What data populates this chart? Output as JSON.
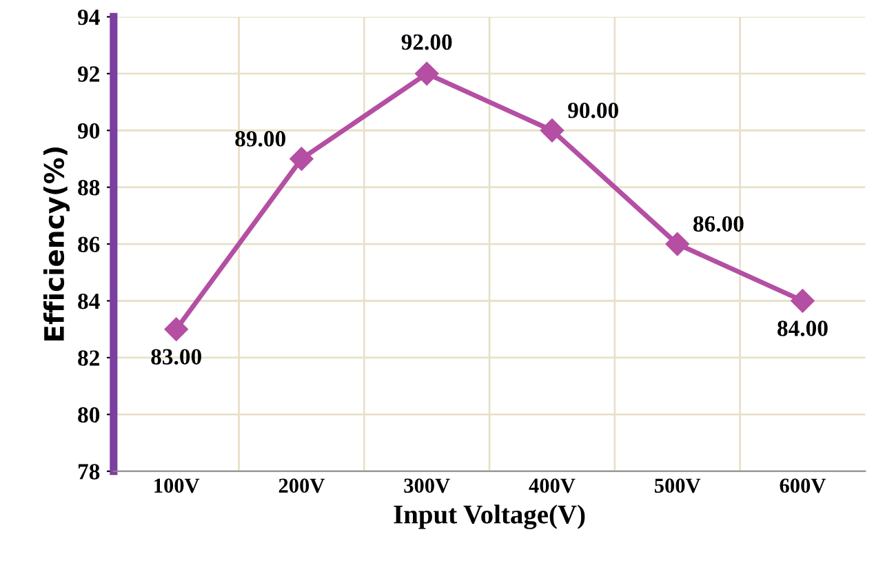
{
  "chart_data": {
    "type": "line",
    "xlabel": "Input Voltage(V)",
    "ylabel": "Efficiency(%)",
    "categories": [
      "100V",
      "200V",
      "300V",
      "400V",
      "500V",
      "600V"
    ],
    "series": [
      {
        "color": "#b44fa3",
        "values": [
          83,
          89,
          92,
          90,
          86,
          84
        ],
        "value_labels": [
          "83.00",
          "89.00",
          "92.00",
          "90.00",
          "86.00",
          "84.00"
        ]
      }
    ],
    "ylim": [
      78,
      94
    ],
    "yticks": [
      78,
      80,
      82,
      84,
      86,
      88,
      90,
      92,
      94
    ],
    "grid": true,
    "marker": "diamond",
    "line_style": "solid",
    "legend": false
  }
}
